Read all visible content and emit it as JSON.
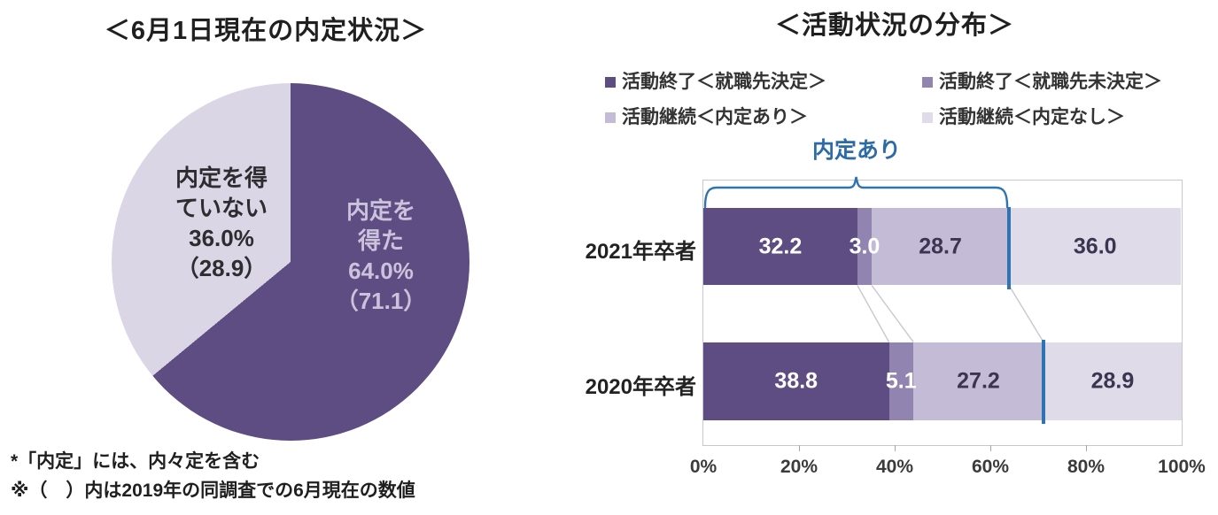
{
  "left_chart": {
    "title": "＜6月1日現在の内定状況＞",
    "dark_slice_label": {
      "line1": "内定を",
      "line2": "得た",
      "line3": "64.0%",
      "line4": "（71.1）"
    },
    "light_slice_label": {
      "line1": "内定を得",
      "line2": "ていない",
      "line3": "36.0%",
      "line4": "（28.9）"
    },
    "footnote1": "*「内定」には、内々定を含む",
    "footnote2": "※（　）内は2019年の同調査での6月現在の数値"
  },
  "right_chart": {
    "title": "＜活動状況の分布＞",
    "bracket_label": "内定あり"
  },
  "chart_data": [
    {
      "type": "pie",
      "title": "＜6月1日現在の内定状況＞",
      "labels": [
        "内定を得た",
        "内定を得ていない"
      ],
      "values": [
        64.0,
        36.0
      ],
      "values_2019_survey": [
        71.1,
        28.9
      ],
      "colors": [
        "#5e4d82",
        "#dbd6e5"
      ],
      "start_angle": "12-oclock-clockwise"
    },
    {
      "type": "bar",
      "subtype": "horizontal-stacked",
      "title": "＜活動状況の分布＞",
      "categories": [
        "2021年卒者",
        "2020年卒者"
      ],
      "series": [
        {
          "name": "活動終了＜就職先決定＞",
          "values": [
            32.2,
            38.8
          ],
          "color": "#5e4d82",
          "label_color": "#ffffff"
        },
        {
          "name": "活動終了＜就職先未決定＞",
          "values": [
            3.0,
            5.1
          ],
          "color": "#9184b0",
          "label_color": "#ffffff"
        },
        {
          "name": "活動継続＜内定あり＞",
          "values": [
            28.7,
            27.2
          ],
          "color": "#c4bcd6",
          "label_color": "#3a3550"
        },
        {
          "name": "活動継続＜内定なし＞",
          "values": [
            36.0,
            28.9
          ],
          "color": "#dfdbe9",
          "label_color": "#3a3550"
        }
      ],
      "annotation": {
        "label": "内定あり",
        "boundary_2021": 63.9,
        "boundary_2020": 71.1,
        "color": "#2f74b2"
      },
      "xlim": [
        0,
        100
      ],
      "x_ticks": [
        "0%",
        "20%",
        "40%",
        "60%",
        "80%",
        "100%"
      ],
      "grid": false,
      "legend_position": "top"
    }
  ]
}
